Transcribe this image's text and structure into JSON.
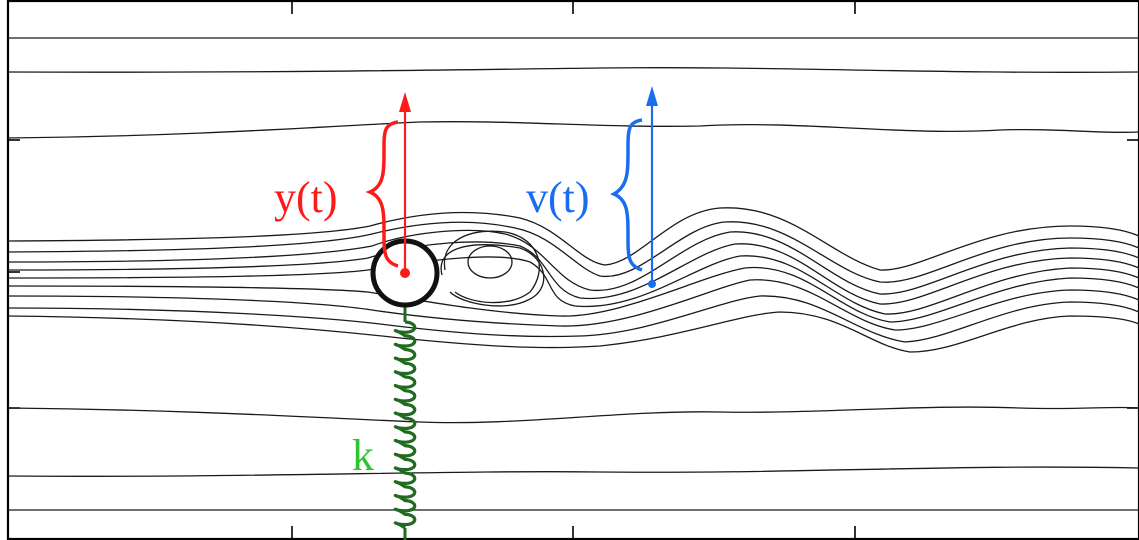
{
  "labels": {
    "displacement": "y(t)",
    "velocity": "v(t)",
    "spring": "k"
  },
  "colors": {
    "displacement": "#ff1a1a",
    "velocity": "#1a6cf0",
    "spring": "#1f6b1f",
    "spring_label": "#2ec42e",
    "streamlines": "#1a1a1a",
    "cylinder": "#111111"
  }
}
